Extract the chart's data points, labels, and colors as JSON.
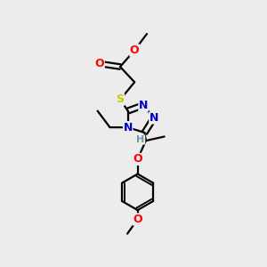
{
  "bg_color": "#ececec",
  "atom_colors": {
    "C": "#000000",
    "N": "#0000cc",
    "O": "#ff0000",
    "S": "#cccc00",
    "H": "#6699aa"
  },
  "bond_color": "#000000",
  "bond_width": 1.6,
  "font_size": 9,
  "fig_width": 3.0,
  "fig_height": 3.0,
  "dpi": 100
}
